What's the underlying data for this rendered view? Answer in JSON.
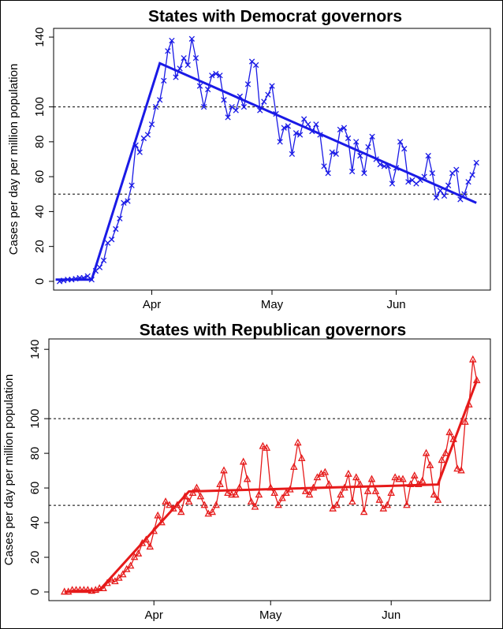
{
  "chart_data": [
    {
      "type": "line",
      "title": "States with Democrat governors",
      "ylabel": "Cases per day per million population",
      "xlim": [
        6.5,
        115.5
      ],
      "ylim": [
        -5,
        145
      ],
      "xticks": [
        {
          "value": 31,
          "label": "Apr"
        },
        {
          "value": 61,
          "label": "May"
        },
        {
          "value": 92,
          "label": "Jun"
        }
      ],
      "yticks": [
        0,
        20,
        40,
        60,
        80,
        100,
        140
      ],
      "hlines": [
        50,
        100
      ],
      "series": [
        {
          "name": null,
          "color": "#1a1ae6",
          "marker": "x",
          "x": [
            8,
            9,
            10,
            11,
            12,
            13,
            14,
            15,
            16,
            17,
            18,
            19,
            20,
            21,
            22,
            23,
            24,
            25,
            26,
            27,
            28,
            29,
            30,
            31,
            32,
            33,
            34,
            35,
            36,
            37,
            38,
            39,
            40,
            41,
            42,
            43,
            44,
            45,
            46,
            47,
            48,
            49,
            50,
            51,
            52,
            53,
            54,
            55,
            56,
            57,
            58,
            59,
            60,
            61,
            62,
            63,
            64,
            65,
            66,
            67,
            68,
            69,
            70,
            71,
            72,
            73,
            74,
            75,
            76,
            77,
            78,
            79,
            80,
            81,
            82,
            83,
            84,
            85,
            86,
            87,
            88,
            89,
            90,
            91,
            92,
            93,
            94,
            95,
            96,
            97,
            98,
            99,
            100,
            101,
            102,
            103,
            104,
            105,
            106,
            107,
            108,
            109,
            110,
            111,
            112
          ],
          "values": [
            0,
            0.5,
            1,
            1,
            1.5,
            2,
            2,
            3,
            1,
            6,
            8,
            12,
            22,
            24,
            30,
            36,
            45,
            46,
            55,
            78,
            74,
            82,
            84,
            90,
            100,
            104,
            115,
            132,
            138,
            117,
            122,
            128,
            124,
            139,
            128,
            112,
            100,
            110,
            118,
            119,
            118,
            104,
            94,
            100,
            98,
            106,
            100,
            113,
            126,
            124,
            98,
            103,
            107,
            112,
            96,
            80,
            88,
            89,
            73,
            85,
            84,
            93,
            90,
            86,
            90,
            84,
            66,
            62,
            74,
            73,
            87,
            88,
            82,
            63,
            80,
            72,
            62,
            77,
            83,
            70,
            67,
            66,
            66,
            56,
            65,
            80,
            76,
            57,
            58,
            56,
            58,
            60,
            72,
            62,
            48,
            52,
            49,
            55,
            62,
            64,
            47,
            50,
            57,
            61,
            68
          ]
        },
        {
          "name": null,
          "color": "#1a1ae6",
          "marker": null,
          "x": [
            7,
            16,
            33,
            112
          ],
          "values": [
            1,
            1,
            125,
            45
          ]
        }
      ]
    },
    {
      "type": "line",
      "title": "States with Republican governors",
      "ylabel": "Cases per day per million population",
      "xlim": [
        4,
        117.5
      ],
      "ylim": [
        -5,
        146
      ],
      "xticks": [
        {
          "value": 31,
          "label": "Apr"
        },
        {
          "value": 61,
          "label": "May"
        },
        {
          "value": 92,
          "label": "Jun"
        }
      ],
      "yticks": [
        0,
        20,
        40,
        60,
        80,
        100,
        140
      ],
      "hlines": [
        50,
        100
      ],
      "series": [
        {
          "name": null,
          "color": "#e61a1a",
          "marker": "triangle",
          "x": [
            8,
            9,
            10,
            11,
            12,
            13,
            14,
            15,
            16,
            17,
            18,
            19,
            20,
            21,
            22,
            23,
            24,
            25,
            26,
            27,
            28,
            29,
            30,
            31,
            32,
            33,
            34,
            35,
            36,
            37,
            38,
            39,
            40,
            41,
            42,
            43,
            44,
            45,
            46,
            47,
            48,
            49,
            50,
            51,
            52,
            53,
            54,
            55,
            56,
            57,
            58,
            59,
            60,
            61,
            62,
            63,
            64,
            65,
            66,
            67,
            68,
            69,
            70,
            71,
            72,
            73,
            74,
            75,
            76,
            77,
            78,
            79,
            80,
            81,
            82,
            83,
            84,
            85,
            86,
            87,
            88,
            89,
            90,
            91,
            92,
            93,
            94,
            95,
            96,
            97,
            98,
            99,
            100,
            101,
            102,
            103,
            104,
            105,
            106,
            107,
            108,
            109,
            110,
            111,
            112,
            113,
            114
          ],
          "values": [
            0,
            0,
            1,
            1,
            1,
            1,
            1,
            0.5,
            1,
            2,
            2,
            5,
            7,
            6,
            8,
            10,
            13,
            15,
            20,
            22,
            28,
            30,
            26,
            35,
            44,
            40,
            52,
            50,
            48,
            50,
            46,
            55,
            52,
            57,
            60,
            55,
            50,
            45,
            46,
            50,
            62,
            70,
            57,
            56,
            56,
            60,
            75,
            65,
            52,
            49,
            56,
            84,
            83,
            60,
            57,
            50,
            54,
            57,
            59,
            72,
            86,
            77,
            58,
            56,
            60,
            66,
            68,
            69,
            62,
            48,
            50,
            56,
            60,
            68,
            52,
            66,
            62,
            46,
            58,
            65,
            58,
            53,
            48,
            50,
            57,
            66,
            65,
            65,
            50,
            62,
            67,
            62,
            64,
            80,
            73,
            56,
            53,
            76,
            80,
            92,
            88,
            71,
            70,
            98,
            108,
            134,
            122
          ]
        },
        {
          "name": null,
          "color": "#e61a1a",
          "marker": null,
          "x": [
            8,
            17,
            40,
            104,
            114
          ],
          "values": [
            0,
            1,
            58,
            62,
            122
          ]
        }
      ]
    }
  ]
}
